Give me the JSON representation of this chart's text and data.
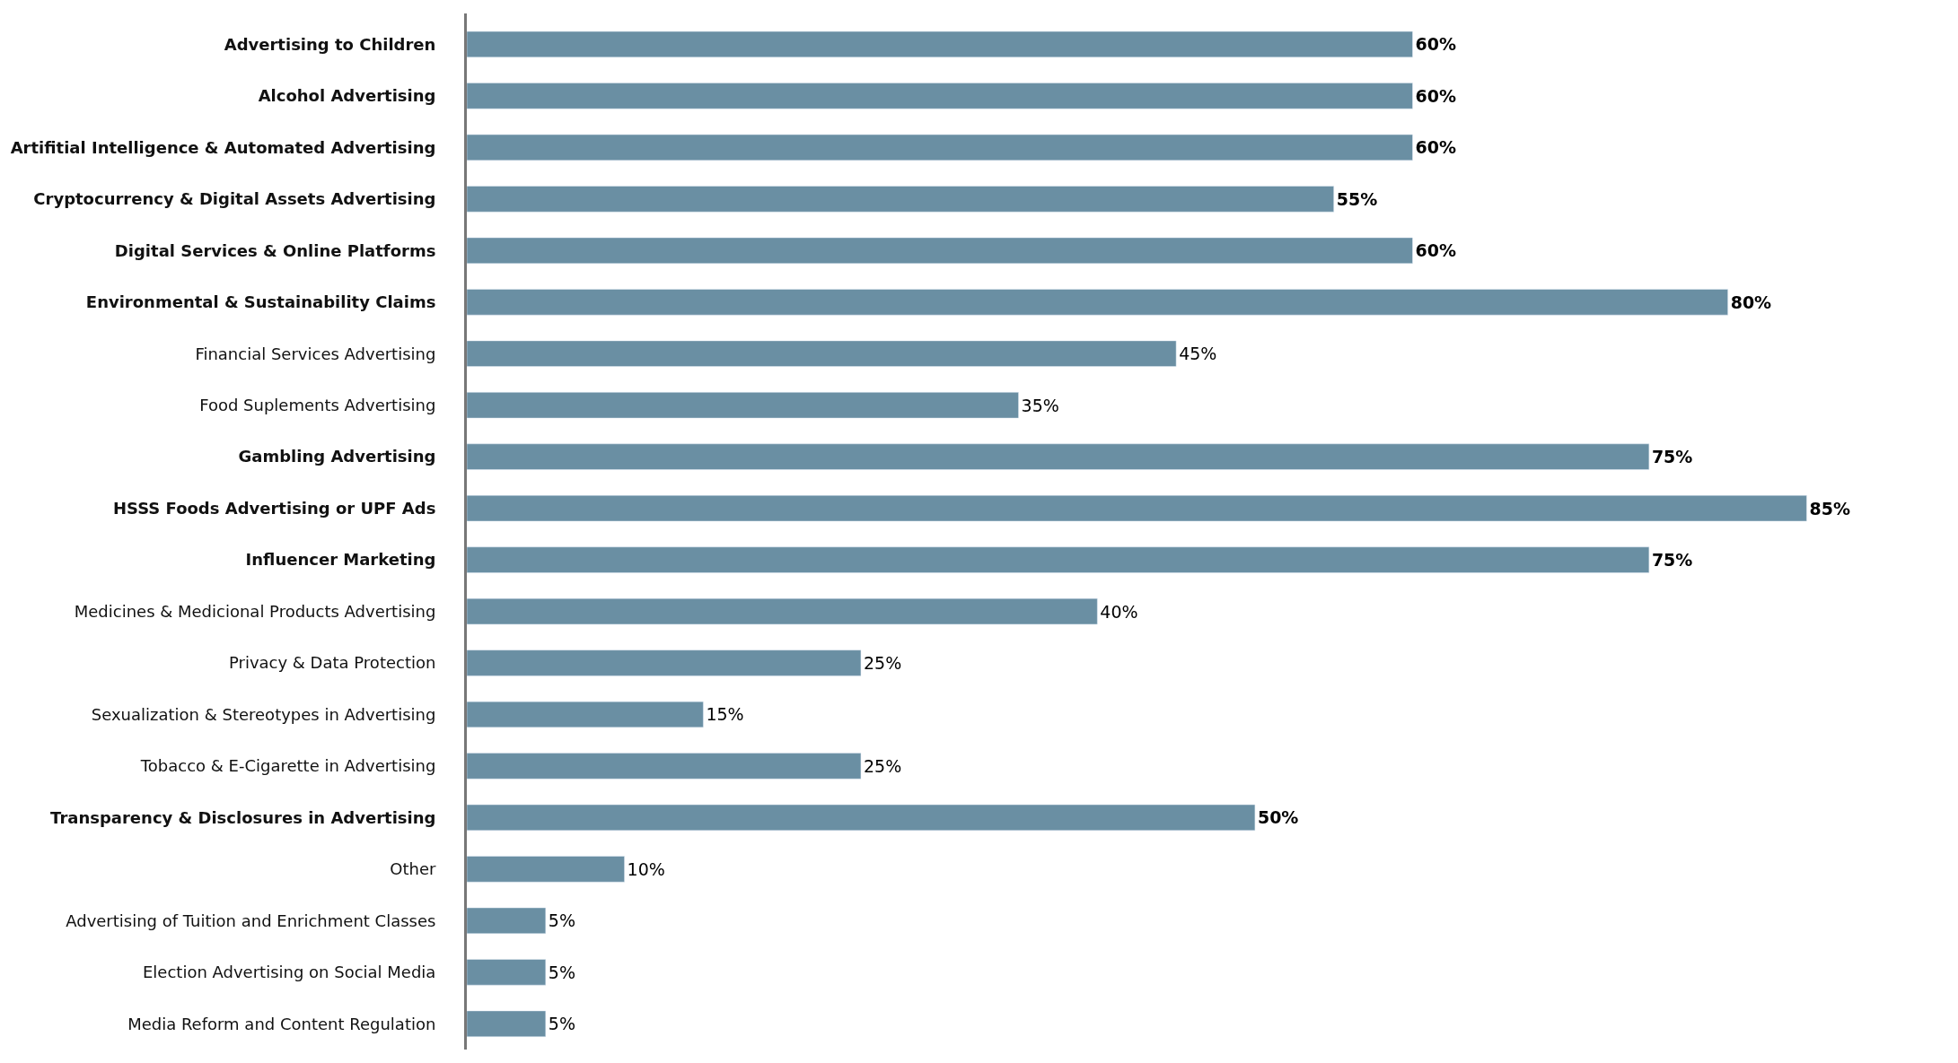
{
  "chart_data": {
    "type": "bar",
    "orientation": "horizontal",
    "color": "#6a8fa3",
    "categories": [
      "Advertising to Children",
      "Alcohol Advertising",
      "Artifitial Intelligence & Automated Advertising",
      "Cryptocurrency & Digital Assets Advertising",
      "Digital Services & Online Platforms",
      "Environmental & Sustainability Claims",
      "Financial Services Advertising",
      "Food Suplements Advertising",
      "Gambling Advertising",
      "HSSS Foods Advertising or UPF Ads",
      "Influencer Marketing",
      "Medicines & Medicional Products Advertising",
      "Privacy & Data Protection",
      "Sexualization & Stereotypes in Advertising",
      "Tobacco & E-Cigarette in Advertising",
      "Transparency & Disclosures in Advertising",
      "Other",
      "Advertising of Tuition and Enrichment Classes",
      "Election Advertising on Social Media",
      "Media Reform and Content Regulation"
    ],
    "values": [
      60,
      60,
      60,
      55,
      60,
      80,
      45,
      35,
      75,
      85,
      75,
      40,
      25,
      15,
      25,
      50,
      10,
      5,
      5,
      5
    ],
    "value_labels": [
      "60%",
      "60%",
      "60%",
      "55%",
      "60%",
      "80%",
      "45%",
      "35%",
      "75%",
      "85%",
      "75%",
      "40%",
      "25%",
      "15%",
      "25%",
      "50%",
      "10%",
      "5%",
      "5%",
      "5%"
    ]
  }
}
